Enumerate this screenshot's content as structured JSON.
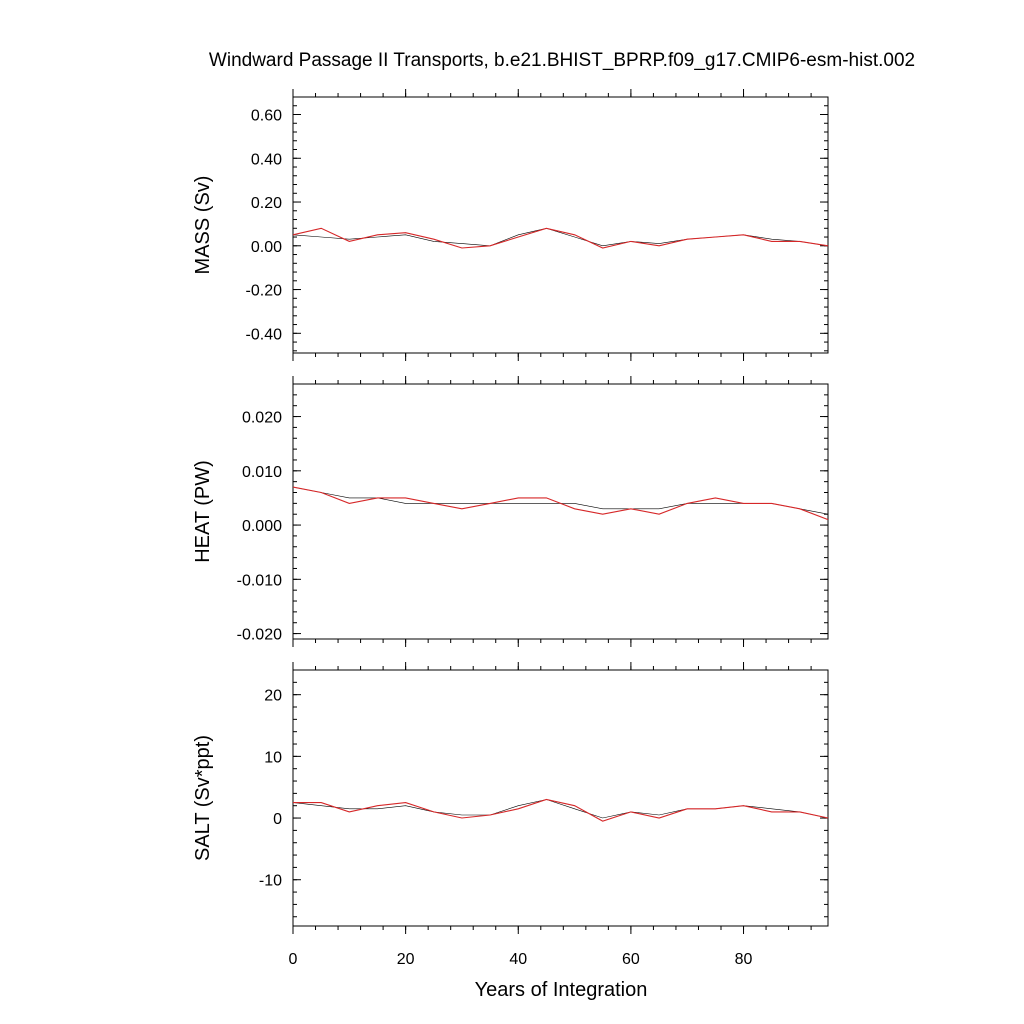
{
  "chart_data": {
    "type": "line",
    "title": "Windward Passage II Transports, b.e21.BHIST_BPRP.f09_g17.CMIP6-esm-hist.002",
    "xlabel": "Years of Integration",
    "xlim": [
      0,
      95
    ],
    "x_ticks": [
      "0",
      "20",
      "40",
      "60",
      "80"
    ],
    "x_tick_values": [
      0,
      20,
      40,
      60,
      80
    ],
    "colors": {
      "raw": "#000000",
      "smoothed": "#d62728"
    },
    "panels": [
      {
        "ylabel": "MASS (Sv)",
        "ylim": [
          -0.49,
          0.68
        ],
        "y_ticks": [
          "0.60",
          "0.40",
          "0.20",
          "0.00",
          "-0.20",
          "-0.40"
        ],
        "y_tick_values": [
          0.6,
          0.4,
          0.2,
          0.0,
          -0.2,
          -0.4
        ],
        "series": [
          {
            "x": [
              0,
              5,
              10,
              15,
              20,
              25,
              30,
              35,
              40,
              45,
              50,
              55,
              60,
              65,
              70,
              75,
              80,
              85,
              90,
              95
            ],
            "values": [
              0.05,
              0.04,
              0.03,
              0.04,
              0.05,
              0.02,
              0.01,
              0.0,
              0.05,
              0.08,
              0.04,
              0.0,
              0.02,
              0.01,
              0.03,
              0.04,
              0.05,
              0.03,
              0.02,
              0.0
            ]
          },
          {
            "x": [
              0,
              5,
              10,
              15,
              20,
              25,
              30,
              35,
              40,
              45,
              50,
              55,
              60,
              65,
              70,
              75,
              80,
              85,
              90,
              95
            ],
            "values": [
              0.05,
              0.08,
              0.02,
              0.05,
              0.06,
              0.03,
              -0.01,
              0.0,
              0.04,
              0.08,
              0.05,
              -0.01,
              0.02,
              0.0,
              0.03,
              0.04,
              0.05,
              0.02,
              0.02,
              0.0
            ]
          }
        ]
      },
      {
        "ylabel": "HEAT (PW)",
        "ylim": [
          -0.021,
          0.026
        ],
        "y_ticks": [
          "0.020",
          "0.010",
          "0.000",
          "-0.010",
          "-0.020"
        ],
        "y_tick_values": [
          0.02,
          0.01,
          0.0,
          -0.01,
          -0.02
        ],
        "series": [
          {
            "x": [
              0,
              5,
              10,
              15,
              20,
              25,
              30,
              35,
              40,
              45,
              50,
              55,
              60,
              65,
              70,
              75,
              80,
              85,
              90,
              95
            ],
            "values": [
              0.007,
              0.006,
              0.005,
              0.005,
              0.004,
              0.004,
              0.004,
              0.004,
              0.004,
              0.004,
              0.004,
              0.003,
              0.003,
              0.003,
              0.004,
              0.004,
              0.004,
              0.004,
              0.003,
              0.002
            ]
          },
          {
            "x": [
              0,
              5,
              10,
              15,
              20,
              25,
              30,
              35,
              40,
              45,
              50,
              55,
              60,
              65,
              70,
              75,
              80,
              85,
              90,
              95
            ],
            "values": [
              0.007,
              0.006,
              0.004,
              0.005,
              0.005,
              0.004,
              0.003,
              0.004,
              0.005,
              0.005,
              0.003,
              0.002,
              0.003,
              0.002,
              0.004,
              0.005,
              0.004,
              0.004,
              0.003,
              0.001
            ]
          }
        ]
      },
      {
        "ylabel": "SALT (Sv*ppt)",
        "ylim": [
          -17.5,
          24
        ],
        "y_ticks": [
          "20",
          "10",
          "0",
          "-10"
        ],
        "y_tick_values": [
          20,
          10,
          0,
          -10
        ],
        "series": [
          {
            "x": [
              0,
              5,
              10,
              15,
              20,
              25,
              30,
              35,
              40,
              45,
              50,
              55,
              60,
              65,
              70,
              75,
              80,
              85,
              90,
              95
            ],
            "values": [
              2.5,
              2.0,
              1.5,
              1.5,
              2.0,
              1.0,
              0.5,
              0.5,
              2.0,
              3.0,
              1.5,
              0.0,
              1.0,
              0.5,
              1.5,
              1.5,
              2.0,
              1.5,
              1.0,
              0.0
            ]
          },
          {
            "x": [
              0,
              5,
              10,
              15,
              20,
              25,
              30,
              35,
              40,
              45,
              50,
              55,
              60,
              65,
              70,
              75,
              80,
              85,
              90,
              95
            ],
            "values": [
              2.5,
              2.5,
              1.0,
              2.0,
              2.5,
              1.0,
              0.0,
              0.5,
              1.5,
              3.0,
              2.0,
              -0.5,
              1.0,
              0.0,
              1.5,
              1.5,
              2.0,
              1.0,
              1.0,
              0.0
            ]
          }
        ]
      }
    ]
  }
}
